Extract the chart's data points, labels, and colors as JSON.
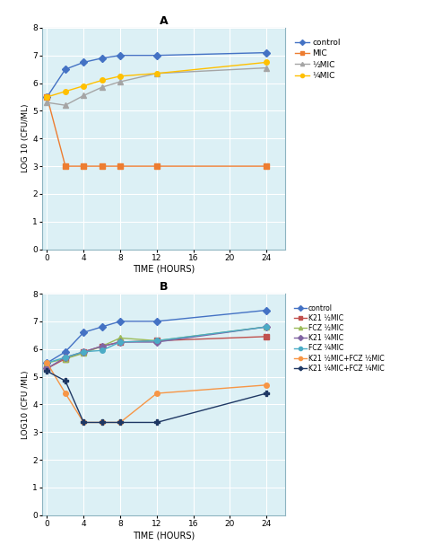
{
  "panel_A": {
    "title": "A",
    "xlabel": "TIME (HOURS)",
    "ylabel": "LOG 10 (CFU/ML)",
    "xlim": [
      -0.5,
      26
    ],
    "ylim": [
      0,
      8
    ],
    "xticks": [
      0,
      4,
      8,
      12,
      16,
      20,
      24
    ],
    "yticks": [
      0,
      1,
      2,
      3,
      4,
      5,
      6,
      7,
      8
    ],
    "series": [
      {
        "label": "control",
        "color": "#4472C4",
        "marker": "D",
        "markersize": 4,
        "x": [
          0,
          2,
          4,
          6,
          8,
          12,
          24
        ],
        "y": [
          5.5,
          6.5,
          6.75,
          6.9,
          7.0,
          7.0,
          7.1
        ]
      },
      {
        "label": "MIC",
        "color": "#ED7D31",
        "marker": "s",
        "markersize": 4,
        "x": [
          0,
          2,
          4,
          6,
          8,
          12,
          24
        ],
        "y": [
          5.5,
          3.0,
          3.0,
          3.0,
          3.0,
          3.0,
          3.0
        ]
      },
      {
        "label": "½MIC",
        "color": "#A5A5A5",
        "marker": "^",
        "markersize": 4,
        "x": [
          0,
          2,
          4,
          6,
          8,
          12,
          24
        ],
        "y": [
          5.3,
          5.2,
          5.55,
          5.85,
          6.05,
          6.35,
          6.55
        ]
      },
      {
        "label": "¼MIC",
        "color": "#FFC000",
        "marker": "o",
        "markersize": 4,
        "x": [
          0,
          2,
          4,
          6,
          8,
          12,
          24
        ],
        "y": [
          5.5,
          5.7,
          5.9,
          6.1,
          6.25,
          6.35,
          6.75
        ]
      }
    ]
  },
  "panel_B": {
    "title": "B",
    "xlabel": "TIME (HOURS)",
    "ylabel": "LOG10 (CFU /ML)",
    "xlim": [
      -0.5,
      26
    ],
    "ylim": [
      0,
      8
    ],
    "xticks": [
      0,
      4,
      8,
      12,
      16,
      20,
      24
    ],
    "yticks": [
      0,
      1,
      2,
      3,
      4,
      5,
      6,
      7,
      8
    ],
    "series": [
      {
        "label": "control",
        "color": "#4472C4",
        "marker": "D",
        "markersize": 4,
        "x": [
          0,
          2,
          4,
          6,
          8,
          12,
          24
        ],
        "y": [
          5.5,
          5.9,
          6.6,
          6.8,
          7.0,
          7.0,
          7.4
        ]
      },
      {
        "label": "K21 ½MIC",
        "color": "#C0504D",
        "marker": "s",
        "markersize": 4,
        "x": [
          0,
          2,
          4,
          6,
          8,
          12,
          24
        ],
        "y": [
          5.3,
          5.65,
          5.9,
          6.1,
          6.25,
          6.3,
          6.45
        ]
      },
      {
        "label": "FCZ ½MIC",
        "color": "#9BBB59",
        "marker": "^",
        "markersize": 4,
        "x": [
          0,
          2,
          4,
          6,
          8,
          12,
          24
        ],
        "y": [
          5.5,
          5.65,
          5.85,
          6.1,
          6.4,
          6.3,
          6.8
        ]
      },
      {
        "label": "K21 ¼MIC",
        "color": "#8064A2",
        "marker": "D",
        "markersize": 4,
        "x": [
          0,
          2,
          4,
          6,
          8,
          12,
          24
        ],
        "y": [
          5.3,
          5.7,
          5.9,
          6.1,
          6.25,
          6.25,
          6.8
        ]
      },
      {
        "label": "FCZ ¼MIC",
        "color": "#4BACC6",
        "marker": "o",
        "markersize": 4,
        "x": [
          0,
          2,
          4,
          6,
          8,
          12,
          24
        ],
        "y": [
          5.5,
          5.7,
          5.9,
          5.95,
          6.25,
          6.3,
          6.8
        ]
      },
      {
        "label": "K21 ½MIC+FCZ ½MIC",
        "color": "#F79646",
        "marker": "o",
        "markersize": 4,
        "x": [
          0,
          2,
          4,
          6,
          8,
          12,
          24
        ],
        "y": [
          5.5,
          4.4,
          3.35,
          3.35,
          3.35,
          4.4,
          4.7
        ]
      },
      {
        "label": "K21 ¼MIC+FCZ ¼MIC",
        "color": "#1F3864",
        "marker": "P",
        "markersize": 4,
        "x": [
          0,
          2,
          4,
          6,
          8,
          12,
          24
        ],
        "y": [
          5.2,
          4.85,
          3.35,
          3.35,
          3.35,
          3.35,
          4.4
        ]
      }
    ]
  },
  "plot_bg_color": "#DCF0F5",
  "grid_color": "#FFFFFF",
  "fig_bg": "#FFFFFF",
  "border_color": "#8DB4C0"
}
